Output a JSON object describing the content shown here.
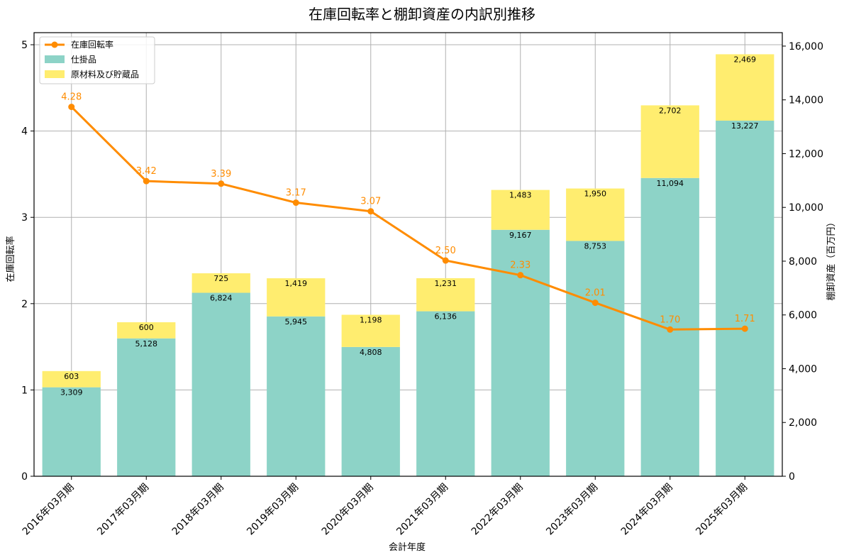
{
  "chart_data": {
    "type": "bar+line",
    "title": "在庫回転率と棚卸資産の内訳別推移",
    "xlabel": "会計年度",
    "ylabel_left": "在庫回転率",
    "ylabel_right": "棚卸資産（百万円）",
    "categories": [
      "2016年03月期",
      "2017年03月期",
      "2018年03月期",
      "2019年03月期",
      "2020年03月期",
      "2021年03月期",
      "2022年03月期",
      "2023年03月期",
      "2024年03月期",
      "2025年03月期"
    ],
    "bar_series": [
      {
        "name": "仕掛品",
        "color": "#8dd3c7",
        "values": [
          3309,
          5128,
          6824,
          5945,
          4808,
          6136,
          9167,
          8753,
          11094,
          13227
        ],
        "labels": [
          "3,309",
          "5,128",
          "6,824",
          "5,945",
          "4,808",
          "6,136",
          "9,167",
          "8,753",
          "11,094",
          "13,227"
        ]
      },
      {
        "name": "原材料及び貯蔵品",
        "color": "#ffed6f",
        "values": [
          603,
          600,
          725,
          1419,
          1198,
          1231,
          1483,
          1950,
          2702,
          2469
        ],
        "labels": [
          "603",
          "600",
          "725",
          "1,419",
          "1,198",
          "1,231",
          "1,483",
          "1,950",
          "2,702",
          "2,469"
        ]
      }
    ],
    "line_series": {
      "name": "在庫回転率",
      "color": "#ff8c00",
      "values": [
        4.28,
        3.42,
        3.39,
        3.17,
        3.07,
        2.5,
        2.33,
        2.01,
        1.7,
        1.71
      ],
      "labels": [
        "4.28",
        "3.42",
        "3.39",
        "3.17",
        "3.07",
        "2.50",
        "2.33",
        "2.01",
        "1.70",
        "1.71"
      ]
    },
    "ylim_left": [
      0,
      5.14
    ],
    "ylim_right": [
      0,
      16500
    ],
    "left_ticks": [
      0,
      1,
      2,
      3,
      4,
      5
    ],
    "left_tick_labels": [
      "0",
      "1",
      "2",
      "3",
      "4",
      "5"
    ],
    "right_ticks": [
      0,
      2000,
      4000,
      6000,
      8000,
      10000,
      12000,
      14000,
      16000
    ],
    "right_tick_labels": [
      "0",
      "2,000",
      "4,000",
      "6,000",
      "8,000",
      "10,000",
      "12,000",
      "14,000",
      "16,000"
    ],
    "grid": true,
    "legend_position": "top-left"
  }
}
